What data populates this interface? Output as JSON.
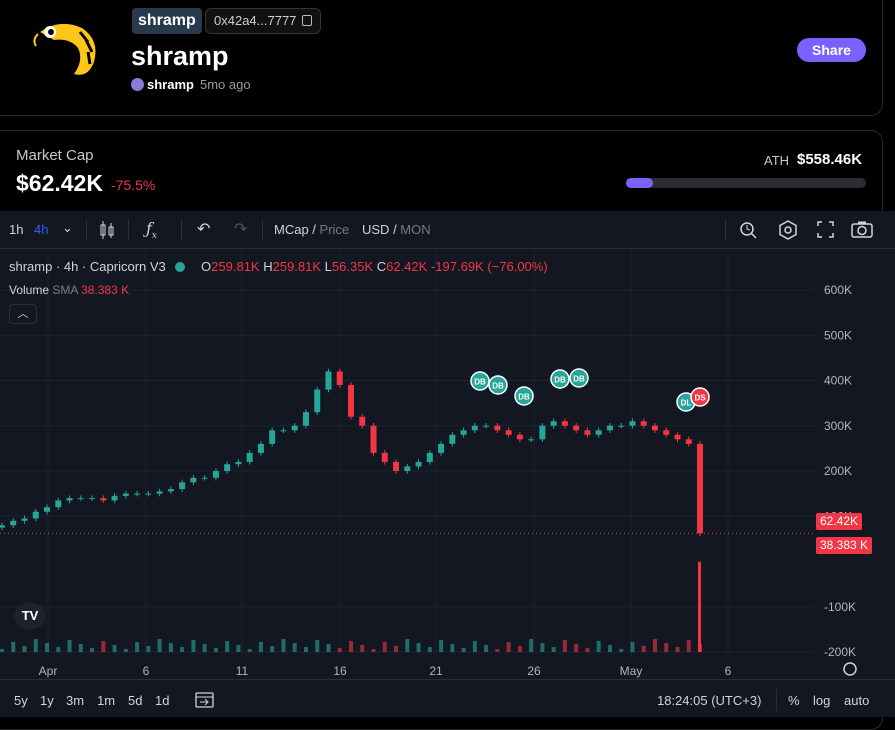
{
  "token": {
    "ticker": "shramp",
    "address_short": "0x42a4...7777",
    "name": "shramp",
    "creator": "shramp",
    "age": "5mo ago",
    "share_label": "Share"
  },
  "market": {
    "label": "Market Cap",
    "value": "$62.42K",
    "change": "-75.5%",
    "ath_label": "ATH",
    "ath_value": "$558.46K",
    "ath_progress": 0.112
  },
  "toolbar": {
    "tf_1h": "1h",
    "tf_4h": "4h",
    "mcap": "MCap",
    "price": "Price",
    "usd": "USD",
    "mon": "MON"
  },
  "legend": {
    "symbol": "shramp · 4h · Capricorn V3",
    "o_label": "O",
    "o": "259.81K",
    "h_label": "H",
    "h": "259.81K",
    "l_label": "L",
    "l": "56.35K",
    "c_label": "C",
    "c": "62.42K",
    "change": "-197.69K (−76.00%)",
    "volume": "Volume",
    "sma": "SMA",
    "volume_value": "38.383 K"
  },
  "axis": {
    "y_ticks": [
      "600K",
      "500K",
      "400K",
      "300K",
      "200K",
      "100K",
      "-100K",
      "-200K"
    ],
    "x_ticks": [
      "Apr",
      "6",
      "11",
      "16",
      "21",
      "26",
      "May",
      "6"
    ],
    "price_tag": "62.42K",
    "volume_tag": "38.383 K"
  },
  "markers": [
    "DB",
    "DB",
    "DB",
    "DB",
    "DB",
    "DL",
    "DS"
  ],
  "bottom": {
    "ranges": [
      "5y",
      "1y",
      "3m",
      "1m",
      "5d",
      "1d"
    ],
    "time": "18:24:05 (UTC+3)",
    "pct": "%",
    "log": "log",
    "auto": "auto"
  },
  "colors": {
    "up": "#26a69a",
    "down": "#f23645",
    "accent": "#7b61ff"
  },
  "chart_data": {
    "type": "candlestick",
    "title": "shramp · 4h · Capricorn V3",
    "ylim": [
      -200000,
      600000
    ],
    "x_labels": [
      "Apr",
      "6",
      "11",
      "16",
      "21",
      "26",
      "May",
      "6"
    ],
    "close_series_k": [
      80,
      90,
      95,
      110,
      120,
      135,
      140,
      140,
      140,
      135,
      145,
      150,
      150,
      150,
      155,
      160,
      175,
      185,
      185,
      200,
      215,
      220,
      240,
      260,
      290,
      290,
      300,
      330,
      380,
      420,
      390,
      320,
      300,
      240,
      220,
      200,
      210,
      220,
      240,
      260,
      280,
      290,
      300,
      300,
      290,
      280,
      270,
      270,
      300,
      310,
      300,
      290,
      280,
      290,
      300,
      300,
      310,
      300,
      290,
      280,
      270,
      260,
      62.42
    ]
  }
}
